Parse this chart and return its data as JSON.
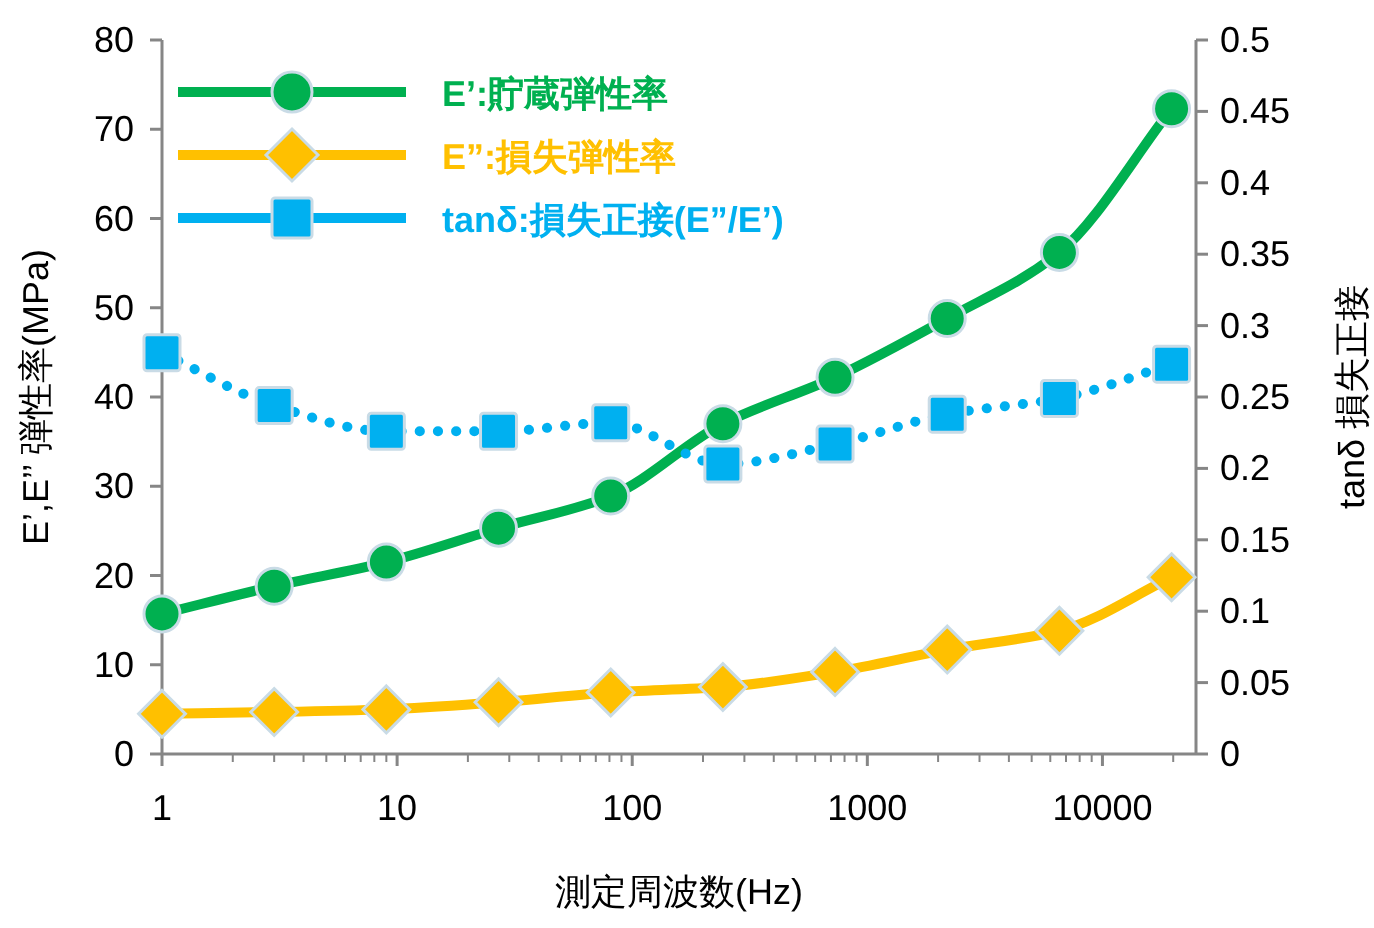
{
  "chart_data": {
    "type": "line",
    "x": [
      1,
      3,
      9,
      27,
      81,
      243,
      729,
      2187,
      6561,
      19683
    ],
    "series": [
      {
        "name": "E’:貯蔵弾性率",
        "color": "#00b050",
        "marker": "circle",
        "line_style": "solid",
        "values": [
          15.7,
          18.8,
          21.5,
          25.3,
          28.9,
          37,
          42.2,
          48.8,
          56.2,
          72.3
        ]
      },
      {
        "name": "E”:損失弾性率",
        "color": "#ffc000",
        "marker": "diamond",
        "line_style": "solid",
        "values": [
          4.5,
          4.7,
          5.0,
          5.8,
          6.9,
          7.5,
          9.2,
          11.7,
          13.8,
          19.8
        ]
      },
      {
        "name": "tanδ:損失正接(E”/E’)",
        "color": "#00b0f0",
        "marker": "square",
        "line_style": "dotted",
        "axis": "y2",
        "values": [
          0.281,
          0.244,
          0.226,
          0.226,
          0.232,
          0.203,
          0.217,
          0.238,
          0.249,
          0.273
        ]
      }
    ],
    "log": "x",
    "xlim": [
      1,
      25000
    ],
    "xticks": [
      1,
      10,
      100,
      1000,
      10000
    ],
    "ylim": [
      0,
      80
    ],
    "yticks": [
      0,
      10,
      20,
      30,
      40,
      50,
      60,
      70,
      80
    ],
    "y2lim": [
      0,
      0.5
    ],
    "y2ticks": [
      0,
      0.05,
      0.1,
      0.15,
      0.2,
      0.25,
      0.3,
      0.35,
      0.4,
      0.45,
      0.5
    ],
    "xlabel": "測定周波数(Hz)",
    "ylabel": "E’,E’’ 弾性率(MPa)",
    "y2label": "tanδ 損失正接",
    "legend": "top left",
    "grid": false
  }
}
